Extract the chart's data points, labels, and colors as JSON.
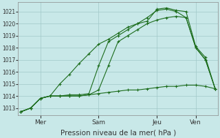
{
  "bg_color": "#c8e8e8",
  "grid_color": "#a0c8c8",
  "line_color": "#1a6b1a",
  "xlabel": "Pression niveau de la mer( hPa )",
  "xlabel_fontsize": 7.5,
  "ylim": [
    1012.4,
    1021.8
  ],
  "yticks": [
    1013,
    1014,
    1015,
    1016,
    1017,
    1018,
    1019,
    1020,
    1021
  ],
  "ytick_fontsize": 5.5,
  "xtick_fontsize": 6.5,
  "xtick_labels": [
    "Mer",
    "Sam",
    "Jeu",
    "Ven"
  ],
  "xtick_positions": [
    2,
    8,
    14,
    18
  ],
  "total_points": 21,
  "series1_y": [
    1012.7,
    1013.0,
    1013.8,
    1014.0,
    1015.0,
    1015.8,
    1016.7,
    1017.5,
    1018.3,
    1018.7,
    1019.2,
    1019.7,
    1020.0,
    1020.2,
    1021.2,
    1021.3,
    1021.1,
    1021.0,
    1018.1,
    1017.2,
    1014.6
  ],
  "series2_y": [
    1012.7,
    1013.0,
    1013.8,
    1014.0,
    1014.0,
    1014.1,
    1014.1,
    1014.2,
    1016.5,
    1018.5,
    1019.0,
    1019.5,
    1020.0,
    1020.5,
    1021.1,
    1021.2,
    1021.0,
    1020.5,
    1018.0,
    1017.0,
    1014.6
  ],
  "series3_y": [
    1012.7,
    1013.0,
    1013.8,
    1014.0,
    1014.0,
    1014.0,
    1014.0,
    1014.1,
    1014.5,
    1016.5,
    1018.5,
    1019.0,
    1019.5,
    1020.0,
    1020.3,
    1020.5,
    1020.6,
    1020.5,
    1018.0,
    1017.0,
    1014.6
  ],
  "series4_y": [
    1012.7,
    1013.0,
    1013.8,
    1014.0,
    1014.0,
    1014.0,
    1014.0,
    1014.1,
    1014.2,
    1014.3,
    1014.4,
    1014.5,
    1014.5,
    1014.6,
    1014.7,
    1014.8,
    1014.8,
    1014.9,
    1014.9,
    1014.8,
    1014.6
  ]
}
